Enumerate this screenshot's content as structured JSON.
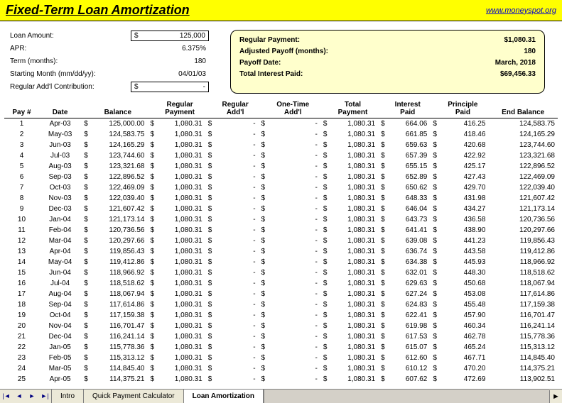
{
  "title": "Fixed-Term Loan Amortization",
  "link": "www.moneyspot.org",
  "inputs": {
    "loan_amount_label": "Loan Amount:",
    "loan_amount": "125,000",
    "apr_label": "APR:",
    "apr": "6.375%",
    "term_label": "Term (months):",
    "term": "180",
    "start_label": "Starting Month (mm/dd/yy):",
    "start": "04/01/03",
    "addl_label": "Regular Add'l Contribution:",
    "addl": "-"
  },
  "summary": {
    "payment_label": "Regular Payment:",
    "payment": "$1,080.31",
    "payoff_months_label": "Adjusted Payoff (months):",
    "payoff_months": "180",
    "payoff_date_label": "Payoff Date:",
    "payoff_date": "March, 2018",
    "total_interest_label": "Total Interest Paid:",
    "total_interest": "$69,456.33"
  },
  "headers": {
    "pay": "Pay #",
    "date": "Date",
    "balance": "Balance",
    "reg_payment": "Regular Payment",
    "reg_addl": "Regular Add'l",
    "onetime": "One-Time Add'l",
    "total": "Total Payment",
    "interest": "Interest Paid",
    "principle": "Principle Paid",
    "end": "End Balance"
  },
  "rows": [
    {
      "n": "1",
      "date": "Apr-03",
      "bal": "125,000.00",
      "pay": "1,080.31",
      "ra": "-",
      "ot": "-",
      "tot": "1,080.31",
      "int": "664.06",
      "prin": "416.25",
      "end": "124,583.75"
    },
    {
      "n": "2",
      "date": "May-03",
      "bal": "124,583.75",
      "pay": "1,080.31",
      "ra": "-",
      "ot": "-",
      "tot": "1,080.31",
      "int": "661.85",
      "prin": "418.46",
      "end": "124,165.29"
    },
    {
      "n": "3",
      "date": "Jun-03",
      "bal": "124,165.29",
      "pay": "1,080.31",
      "ra": "-",
      "ot": "-",
      "tot": "1,080.31",
      "int": "659.63",
      "prin": "420.68",
      "end": "123,744.60"
    },
    {
      "n": "4",
      "date": "Jul-03",
      "bal": "123,744.60",
      "pay": "1,080.31",
      "ra": "-",
      "ot": "-",
      "tot": "1,080.31",
      "int": "657.39",
      "prin": "422.92",
      "end": "123,321.68"
    },
    {
      "n": "5",
      "date": "Aug-03",
      "bal": "123,321.68",
      "pay": "1,080.31",
      "ra": "-",
      "ot": "-",
      "tot": "1,080.31",
      "int": "655.15",
      "prin": "425.17",
      "end": "122,896.52"
    },
    {
      "n": "6",
      "date": "Sep-03",
      "bal": "122,896.52",
      "pay": "1,080.31",
      "ra": "-",
      "ot": "-",
      "tot": "1,080.31",
      "int": "652.89",
      "prin": "427.43",
      "end": "122,469.09"
    },
    {
      "n": "7",
      "date": "Oct-03",
      "bal": "122,469.09",
      "pay": "1,080.31",
      "ra": "-",
      "ot": "-",
      "tot": "1,080.31",
      "int": "650.62",
      "prin": "429.70",
      "end": "122,039.40"
    },
    {
      "n": "8",
      "date": "Nov-03",
      "bal": "122,039.40",
      "pay": "1,080.31",
      "ra": "-",
      "ot": "-",
      "tot": "1,080.31",
      "int": "648.33",
      "prin": "431.98",
      "end": "121,607.42"
    },
    {
      "n": "9",
      "date": "Dec-03",
      "bal": "121,607.42",
      "pay": "1,080.31",
      "ra": "-",
      "ot": "-",
      "tot": "1,080.31",
      "int": "646.04",
      "prin": "434.27",
      "end": "121,173.14"
    },
    {
      "n": "10",
      "date": "Jan-04",
      "bal": "121,173.14",
      "pay": "1,080.31",
      "ra": "-",
      "ot": "-",
      "tot": "1,080.31",
      "int": "643.73",
      "prin": "436.58",
      "end": "120,736.56"
    },
    {
      "n": "11",
      "date": "Feb-04",
      "bal": "120,736.56",
      "pay": "1,080.31",
      "ra": "-",
      "ot": "-",
      "tot": "1,080.31",
      "int": "641.41",
      "prin": "438.90",
      "end": "120,297.66"
    },
    {
      "n": "12",
      "date": "Mar-04",
      "bal": "120,297.66",
      "pay": "1,080.31",
      "ra": "-",
      "ot": "-",
      "tot": "1,080.31",
      "int": "639.08",
      "prin": "441.23",
      "end": "119,856.43"
    },
    {
      "n": "13",
      "date": "Apr-04",
      "bal": "119,856.43",
      "pay": "1,080.31",
      "ra": "-",
      "ot": "-",
      "tot": "1,080.31",
      "int": "636.74",
      "prin": "443.58",
      "end": "119,412.86"
    },
    {
      "n": "14",
      "date": "May-04",
      "bal": "119,412.86",
      "pay": "1,080.31",
      "ra": "-",
      "ot": "-",
      "tot": "1,080.31",
      "int": "634.38",
      "prin": "445.93",
      "end": "118,966.92"
    },
    {
      "n": "15",
      "date": "Jun-04",
      "bal": "118,966.92",
      "pay": "1,080.31",
      "ra": "-",
      "ot": "-",
      "tot": "1,080.31",
      "int": "632.01",
      "prin": "448.30",
      "end": "118,518.62"
    },
    {
      "n": "16",
      "date": "Jul-04",
      "bal": "118,518.62",
      "pay": "1,080.31",
      "ra": "-",
      "ot": "-",
      "tot": "1,080.31",
      "int": "629.63",
      "prin": "450.68",
      "end": "118,067.94"
    },
    {
      "n": "17",
      "date": "Aug-04",
      "bal": "118,067.94",
      "pay": "1,080.31",
      "ra": "-",
      "ot": "-",
      "tot": "1,080.31",
      "int": "627.24",
      "prin": "453.08",
      "end": "117,614.86"
    },
    {
      "n": "18",
      "date": "Sep-04",
      "bal": "117,614.86",
      "pay": "1,080.31",
      "ra": "-",
      "ot": "-",
      "tot": "1,080.31",
      "int": "624.83",
      "prin": "455.48",
      "end": "117,159.38"
    },
    {
      "n": "19",
      "date": "Oct-04",
      "bal": "117,159.38",
      "pay": "1,080.31",
      "ra": "-",
      "ot": "-",
      "tot": "1,080.31",
      "int": "622.41",
      "prin": "457.90",
      "end": "116,701.47"
    },
    {
      "n": "20",
      "date": "Nov-04",
      "bal": "116,701.47",
      "pay": "1,080.31",
      "ra": "-",
      "ot": "-",
      "tot": "1,080.31",
      "int": "619.98",
      "prin": "460.34",
      "end": "116,241.14"
    },
    {
      "n": "21",
      "date": "Dec-04",
      "bal": "116,241.14",
      "pay": "1,080.31",
      "ra": "-",
      "ot": "-",
      "tot": "1,080.31",
      "int": "617.53",
      "prin": "462.78",
      "end": "115,778.36"
    },
    {
      "n": "22",
      "date": "Jan-05",
      "bal": "115,778.36",
      "pay": "1,080.31",
      "ra": "-",
      "ot": "-",
      "tot": "1,080.31",
      "int": "615.07",
      "prin": "465.24",
      "end": "115,313.12"
    },
    {
      "n": "23",
      "date": "Feb-05",
      "bal": "115,313.12",
      "pay": "1,080.31",
      "ra": "-",
      "ot": "-",
      "tot": "1,080.31",
      "int": "612.60",
      "prin": "467.71",
      "end": "114,845.40"
    },
    {
      "n": "24",
      "date": "Mar-05",
      "bal": "114,845.40",
      "pay": "1,080.31",
      "ra": "-",
      "ot": "-",
      "tot": "1,080.31",
      "int": "610.12",
      "prin": "470.20",
      "end": "114,375.21"
    },
    {
      "n": "25",
      "date": "Apr-05",
      "bal": "114,375.21",
      "pay": "1,080.31",
      "ra": "-",
      "ot": "-",
      "tot": "1,080.31",
      "int": "607.62",
      "prin": "472.69",
      "end": "113,902.51"
    }
  ],
  "tabs": {
    "t1": "Intro",
    "t2": "Quick Payment Calculator",
    "t3": "Loan Amortization"
  }
}
